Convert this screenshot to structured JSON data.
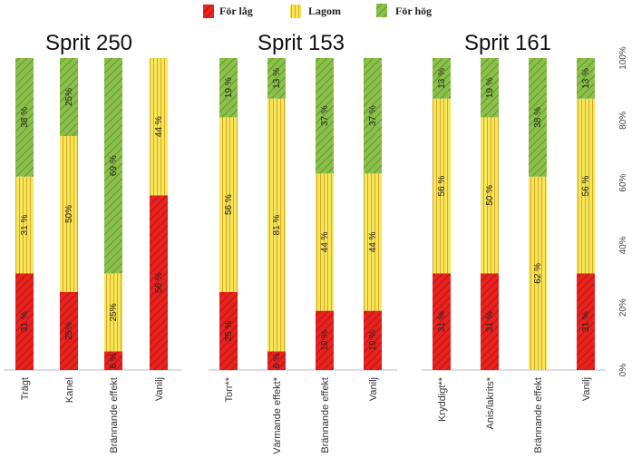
{
  "legend": [
    {
      "name": "För låg",
      "color": "#e8231f"
    },
    {
      "name": "Lagom",
      "color": "#f2e34a"
    },
    {
      "name": "För hög",
      "color": "#7fb33e"
    }
  ],
  "axis": {
    "ticks": [
      "0%",
      "20%",
      "40%",
      "60%",
      "80%",
      "100%"
    ]
  },
  "chart_data": [
    {
      "type": "bar",
      "stacked": true,
      "title": "Sprit 250",
      "categories": [
        "Trägt",
        "Kanel",
        "Brännande effekt",
        "Vanilj"
      ],
      "series": [
        {
          "name": "För låg",
          "values": [
            31,
            25,
            6,
            56
          ],
          "labels": [
            "31 %",
            "25%",
            "6 %",
            "56 %"
          ]
        },
        {
          "name": "Lagom",
          "values": [
            31,
            50,
            25,
            44
          ],
          "labels": [
            "31 %",
            "50%",
            "25%",
            "44 %"
          ]
        },
        {
          "name": "För hög",
          "values": [
            38,
            25,
            69,
            0
          ],
          "labels": [
            "38 %",
            "25%",
            "69 %",
            ""
          ]
        }
      ],
      "ylim": [
        0,
        100
      ]
    },
    {
      "type": "bar",
      "stacked": true,
      "title": "Sprit 153",
      "categories": [
        "Torr**",
        "Värmande effekt*",
        "Brännande effekt",
        "Vanilj"
      ],
      "series": [
        {
          "name": "För låg",
          "values": [
            25,
            6,
            19,
            19
          ],
          "labels": [
            "25 %",
            "6 %",
            "19 %",
            "19 %"
          ]
        },
        {
          "name": "Lagom",
          "values": [
            56,
            81,
            44,
            44
          ],
          "labels": [
            "56 %",
            "81 %",
            "44 %",
            "44 %"
          ]
        },
        {
          "name": "För hög",
          "values": [
            19,
            13,
            37,
            37
          ],
          "labels": [
            "19 %",
            "13 %",
            "37 %",
            "37 %"
          ]
        }
      ],
      "ylim": [
        0,
        100
      ]
    },
    {
      "type": "bar",
      "stacked": true,
      "title": "Sprit 161",
      "categories": [
        "Kryddigt**",
        "Anis/lakrits*",
        "Brännande effekt",
        "Vanilj"
      ],
      "series": [
        {
          "name": "För låg",
          "values": [
            31,
            31,
            0,
            31
          ],
          "labels": [
            "31 %",
            "31 %",
            "",
            "31 %"
          ]
        },
        {
          "name": "Lagom",
          "values": [
            56,
            50,
            62,
            56
          ],
          "labels": [
            "56 %",
            "50 %",
            "62 %",
            "56 %"
          ]
        },
        {
          "name": "För hög",
          "values": [
            13,
            19,
            38,
            13
          ],
          "labels": [
            "13 %",
            "19 %",
            "38 %",
            "13 %"
          ]
        }
      ],
      "ylim": [
        0,
        100
      ]
    }
  ]
}
